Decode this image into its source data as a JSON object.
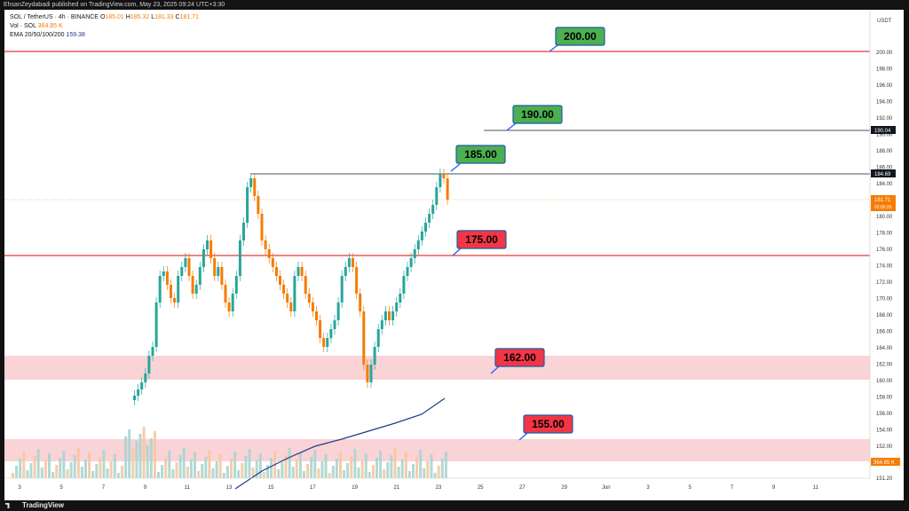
{
  "header": {
    "published_line": "EhsanZeydabadi published on TradingView.com, May 23, 2025 09:24 UTC+3:30"
  },
  "legend": {
    "symbol_line": "SOL / TetherUS · 4h · BINANCE",
    "o_label": "O",
    "o_value": "185.01",
    "h_label": "H",
    "h_value": "185.32",
    "l_label": "L",
    "l_value": "181.33",
    "c_label": "C",
    "c_value": "181.71",
    "vol_label": "Vol · SOL",
    "vol_value": "364.85 K",
    "ema_label": "EMA 20/50/100/200",
    "ema_value": "159.38"
  },
  "price_axis": {
    "currency": "USDT",
    "ticks": [
      "200.00",
      "198.00",
      "196.00",
      "194.00",
      "192.00",
      "190.00",
      "188.00",
      "186.00",
      "184.00",
      "182.00",
      "180.00",
      "178.00",
      "176.00",
      "174.00",
      "172.00",
      "170.00",
      "168.00",
      "166.00",
      "164.00",
      "162.00",
      "160.00",
      "158.00",
      "156.00",
      "154.00",
      "152.00",
      "151.20"
    ],
    "badge_190": "190.04",
    "badge_184": "184.69",
    "badge_price": "181.71",
    "badge_timer": "02:05:29",
    "badge_volume": "364.85 K"
  },
  "time_axis": {
    "ticks": [
      "3",
      "5",
      "7",
      "9",
      "11",
      "13",
      "15",
      "17",
      "19",
      "21",
      "23",
      "25",
      "27",
      "29",
      "Jun",
      "3",
      "5",
      "7",
      "9",
      "11"
    ]
  },
  "levels": [
    {
      "label": "200.00",
      "color": "#4caf50"
    },
    {
      "label": "190.00",
      "color": "#4caf50"
    },
    {
      "label": "185.00",
      "color": "#4caf50"
    },
    {
      "label": "175.00",
      "color": "#f23645"
    },
    {
      "label": "162.00",
      "color": "#f23645"
    },
    {
      "label": "155.00",
      "color": "#f23645"
    }
  ],
  "footer": {
    "brand": "TradingView"
  },
  "colors": {
    "up": "#26a69a",
    "down": "#f57c00",
    "resistance": "#e53935",
    "ema": "#1e3a8a",
    "zone": "#f8d7da"
  }
}
